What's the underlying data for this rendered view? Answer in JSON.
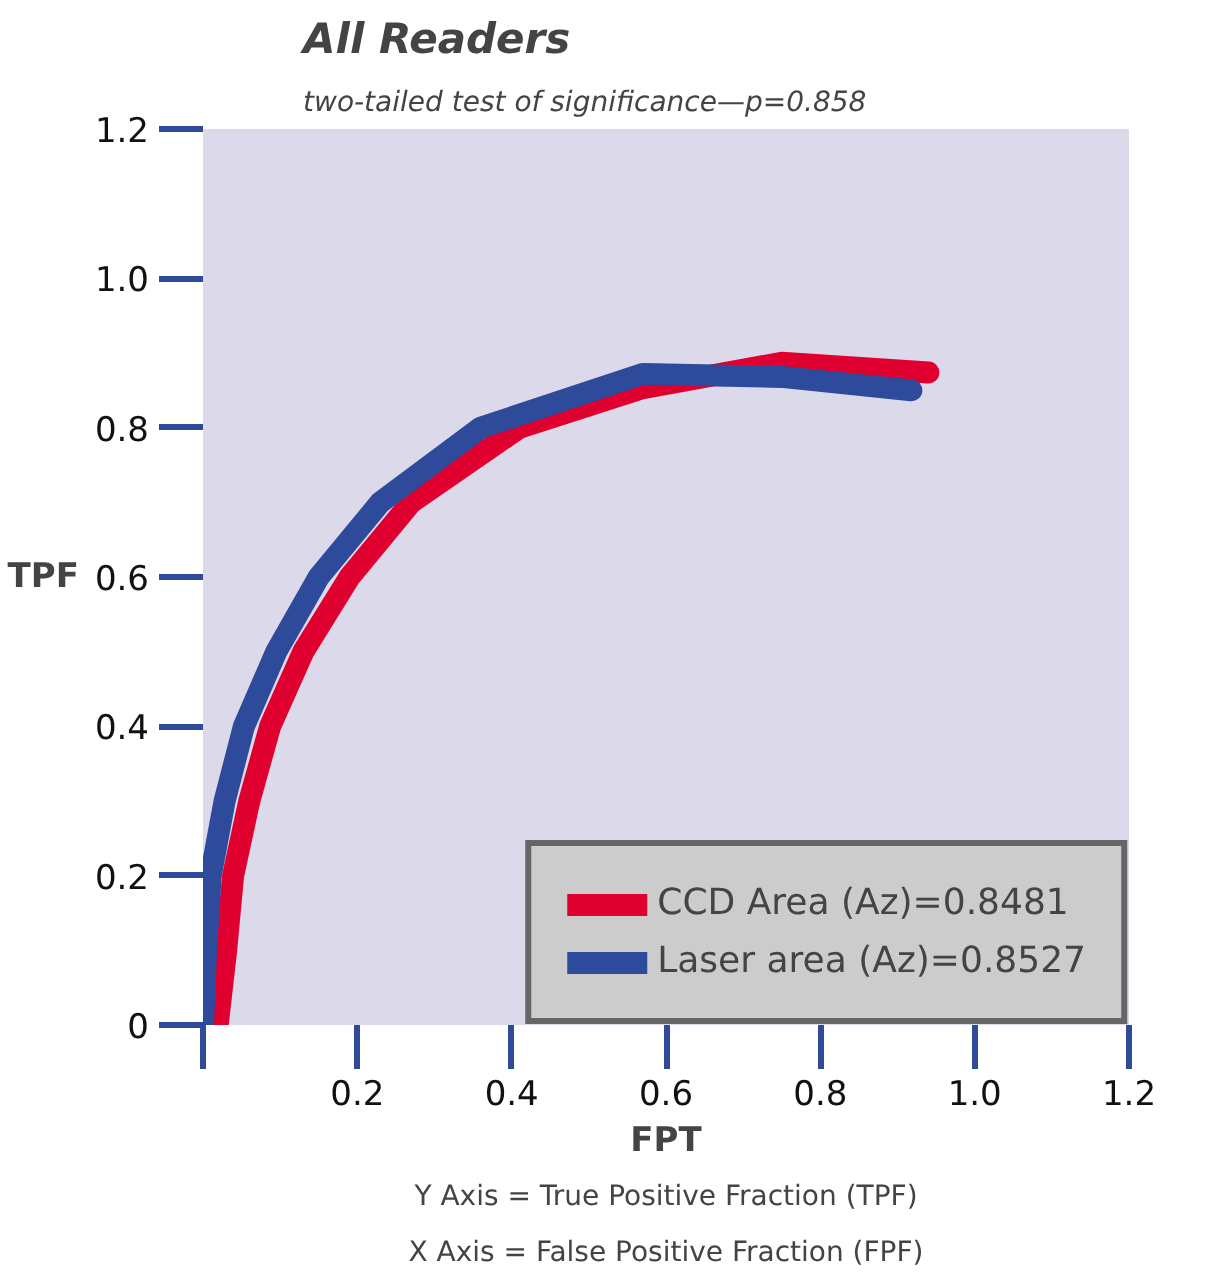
{
  "chart_data": {
    "type": "line",
    "title": "All Readers",
    "subtitle": "two-tailed test of significance—p=0.858",
    "xlabel": "FPT",
    "ylabel": "TPF",
    "annotations": [
      "Y Axis = True Positive Fraction (TPF)",
      "X Axis = False Positive Fraction (FPF)"
    ],
    "series": [
      {
        "name": "CCD Area (Az)=0.8481",
        "color": "#e0002f",
        "x": [
          0.019,
          0.03,
          0.039,
          0.06,
          0.087,
          0.13,
          0.19,
          0.27,
          0.41,
          0.57,
          0.75,
          0.94
        ],
        "values": [
          0,
          0.1,
          0.2,
          0.3,
          0.4,
          0.5,
          0.6,
          0.7,
          0.8,
          0.853,
          0.887,
          0.874
        ]
      },
      {
        "name": "Laser area (Az)=0.8527",
        "color": "#2e4a9a",
        "x": [
          0,
          0.004,
          0.01,
          0.028,
          0.053,
          0.095,
          0.15,
          0.23,
          0.36,
          0.57,
          0.75,
          0.918
        ],
        "values": [
          0,
          0.1,
          0.2,
          0.3,
          0.4,
          0.5,
          0.6,
          0.7,
          0.8,
          0.872,
          0.868,
          0.85
        ]
      }
    ],
    "xlim": [
      0,
      1.2
    ],
    "ylim": [
      0,
      1.2
    ],
    "xticks": [
      {
        "value": 0,
        "label": null
      },
      0.2,
      0.4,
      0.6,
      0.8,
      {
        "value": 1,
        "label": "1.0"
      },
      1.2
    ],
    "yticks": [
      0,
      0.2,
      0.4,
      0.6,
      0.8,
      {
        "value": 1,
        "label": "1.0"
      },
      1.2
    ],
    "grid": false,
    "legend": "bottom right",
    "marker": "none",
    "line_style": "solid"
  }
}
